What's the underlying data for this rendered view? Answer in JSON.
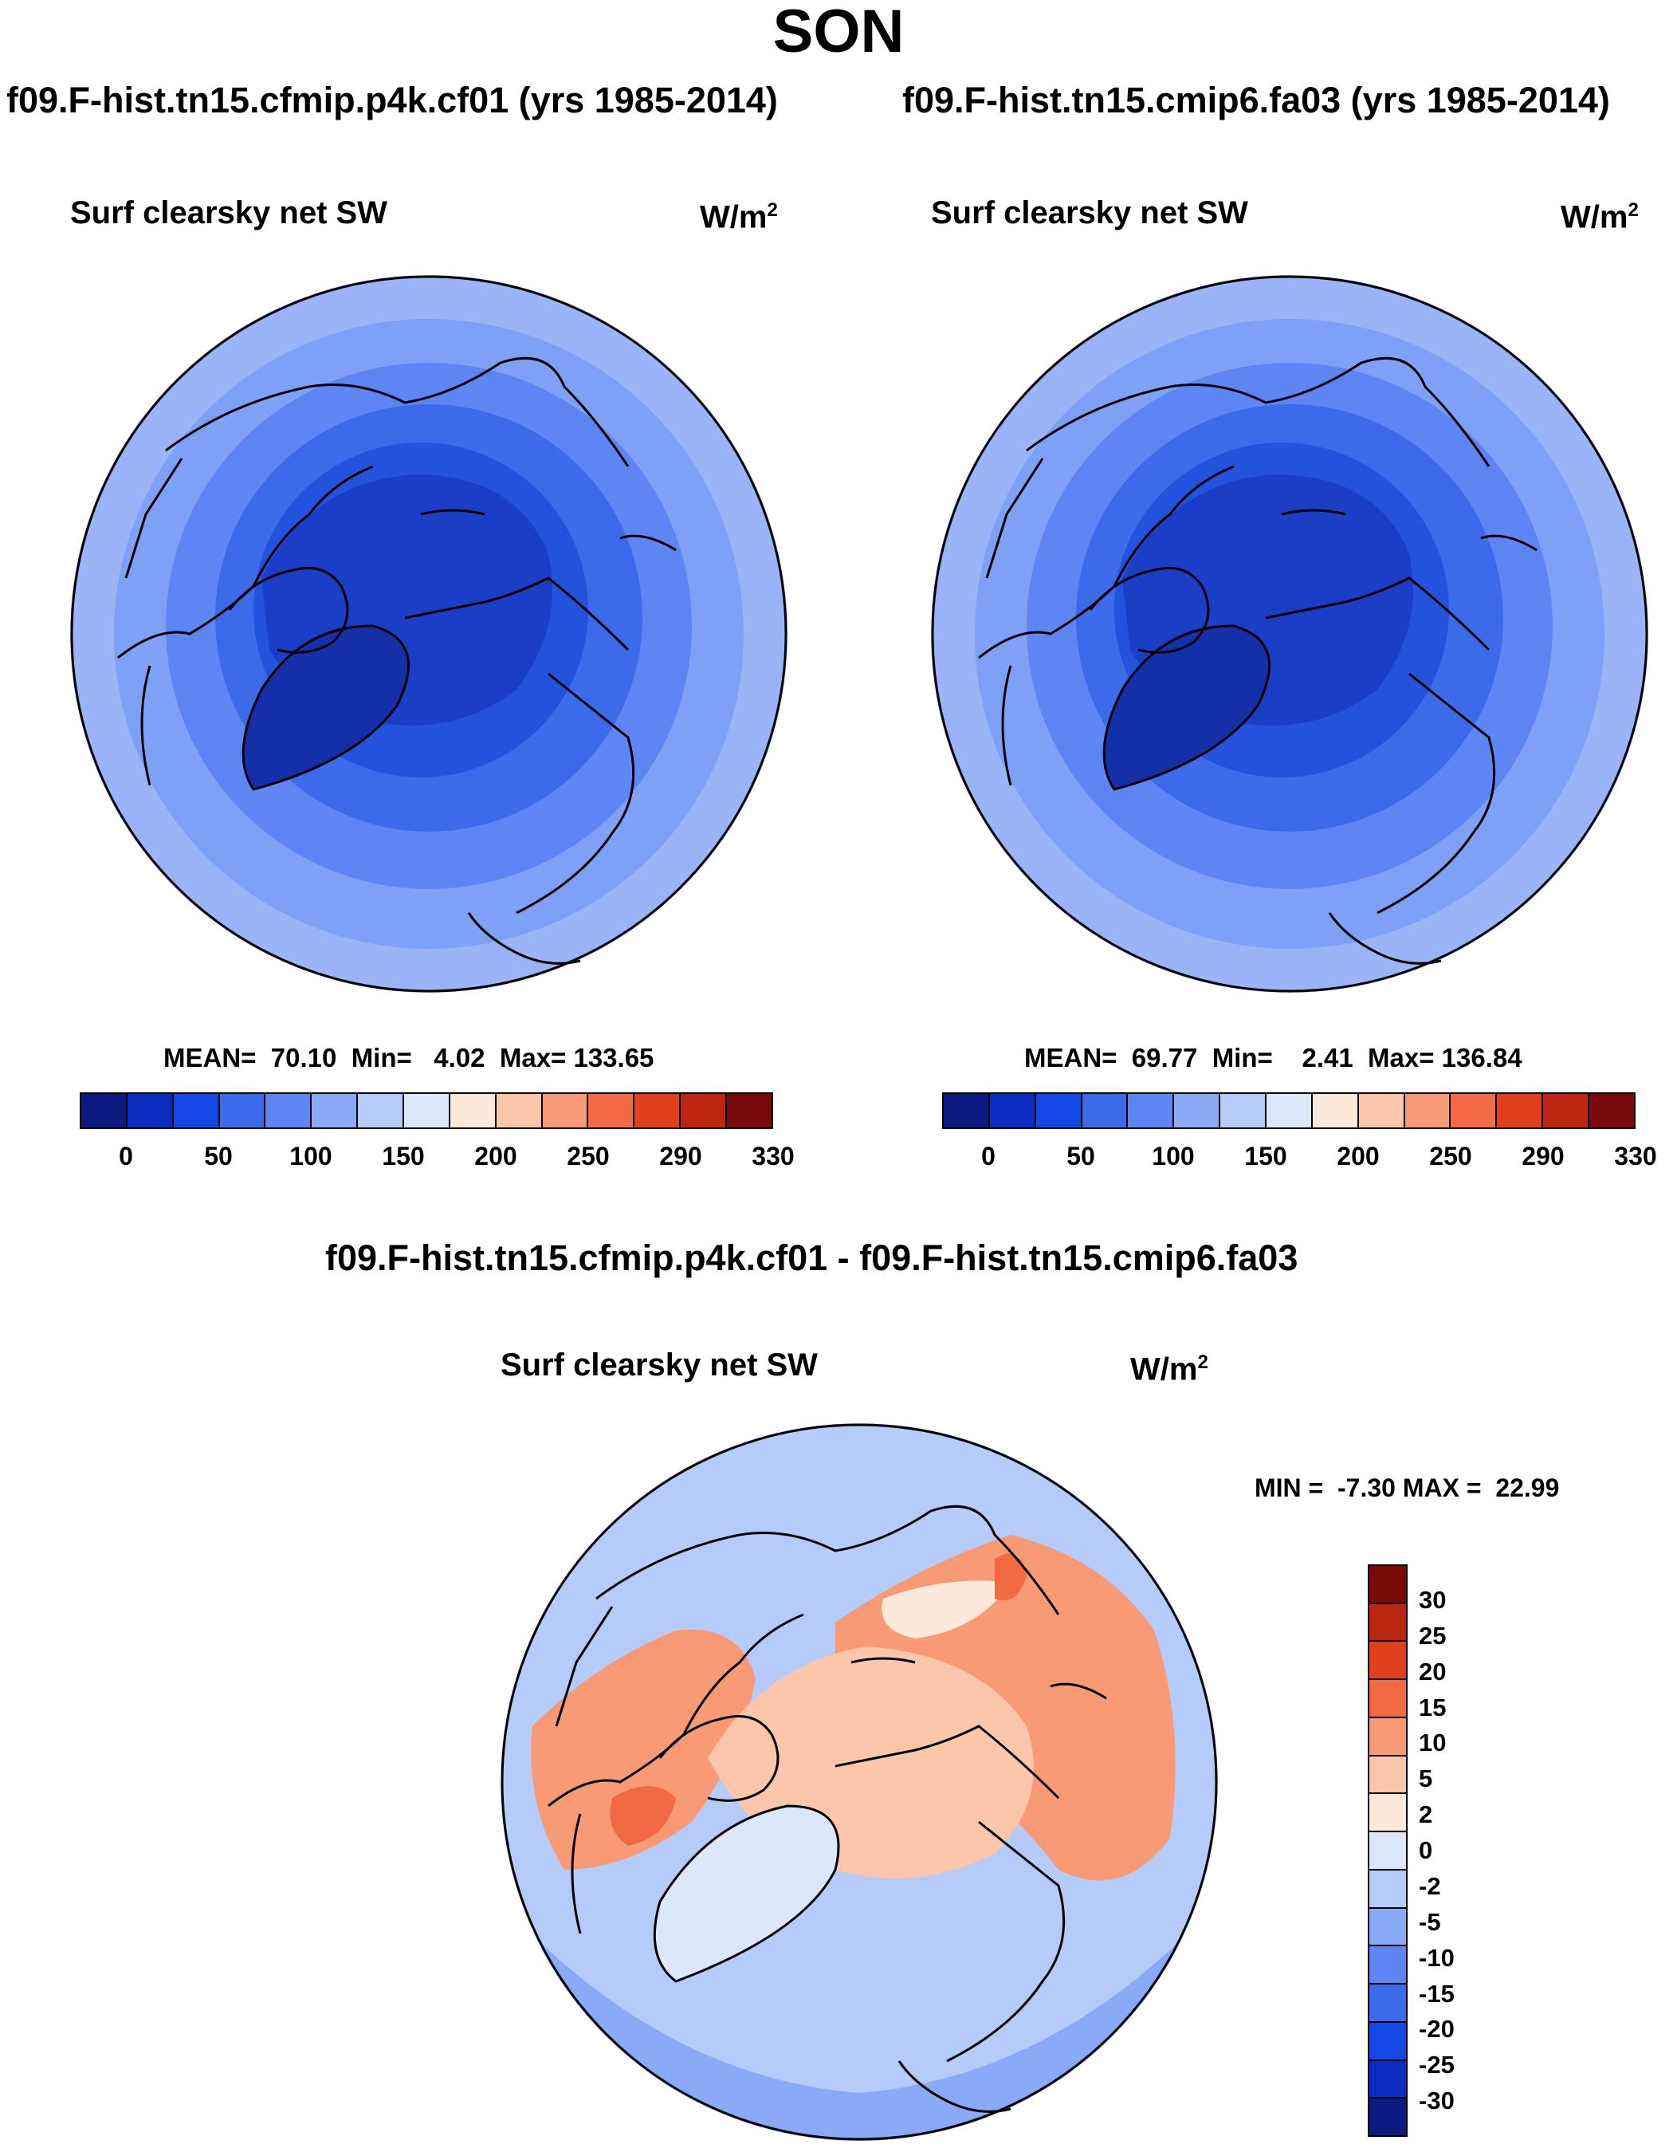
{
  "season": "SON",
  "panels": {
    "left": {
      "run_title": "f09.F-hist.tn15.cfmip.p4k.cf01 (yrs 1985-2014)",
      "plot_title": "Surf clearsky net SW",
      "units_base": "W/m",
      "units_exp": "2",
      "stats": "MEAN=  70.10  Min=   4.02  Max= 133.65",
      "ring_colors": [
        "#9ab4f7",
        "#7ea0f6",
        "#5d85f3",
        "#3d6ae9",
        "#2452dc",
        "#1a3fc6"
      ],
      "core_color": "#1430a8"
    },
    "right": {
      "run_title": "f09.F-hist.tn15.cmip6.fa03 (yrs 1985-2014)",
      "plot_title": "Surf clearsky net SW",
      "units_base": "W/m",
      "units_exp": "2",
      "stats": "MEAN=  69.77  Min=    2.41  Max= 136.84",
      "ring_colors": [
        "#9ab4f7",
        "#7ea0f6",
        "#5d85f3",
        "#3d6ae9",
        "#2452dc",
        "#1a3fc6"
      ],
      "core_color": "#1430a8"
    },
    "diff": {
      "run_title": "f09.F-hist.tn15.cfmip.p4k.cf01 - f09.F-hist.tn15.cmip6.fa03",
      "plot_title": "Surf clearsky net SW",
      "units_base": "W/m",
      "units_exp": "2",
      "stats": "MIN =  -7.30 MAX =  22.99"
    }
  },
  "abs_colorbar": {
    "colors": [
      "#0a1a80",
      "#0a2cc0",
      "#1546e6",
      "#3d6ae9",
      "#5d85f3",
      "#8aa9f6",
      "#b5cbfa",
      "#dbe8fc",
      "#fde9d9",
      "#fcc6ab",
      "#f99a76",
      "#f16a43",
      "#e0401d",
      "#bd2612",
      "#7a0a0a"
    ],
    "tick_labels": [
      "0",
      "50",
      "100",
      "150",
      "200",
      "250",
      "290",
      "330"
    ]
  },
  "diff_colorbar": {
    "colors": [
      "#0a1a80",
      "#0a2cc0",
      "#1546e6",
      "#3d6ae9",
      "#5d85f3",
      "#8aa9f6",
      "#b5cbfa",
      "#dbe8fc",
      "#fde9d9",
      "#fcc6ab",
      "#f99a76",
      "#f16a43",
      "#e0401d",
      "#bd2612",
      "#7a0a0a"
    ],
    "tick_labels": [
      "-30",
      "-25",
      "-20",
      "-15",
      "-10",
      "-5",
      "-2",
      "0",
      "2",
      "5",
      "10",
      "15",
      "20",
      "25",
      "30"
    ]
  },
  "diff_map": {
    "ocean_color": "#b5cbfa",
    "ocean_outer_color": "#8aa9f6",
    "arctic_color": "#fcc6ab",
    "land_warm_color": "#f99a76",
    "hot_color": "#f16a43",
    "greenland_color": "#dbe8fc",
    "pale_color": "#fde9d9"
  }
}
